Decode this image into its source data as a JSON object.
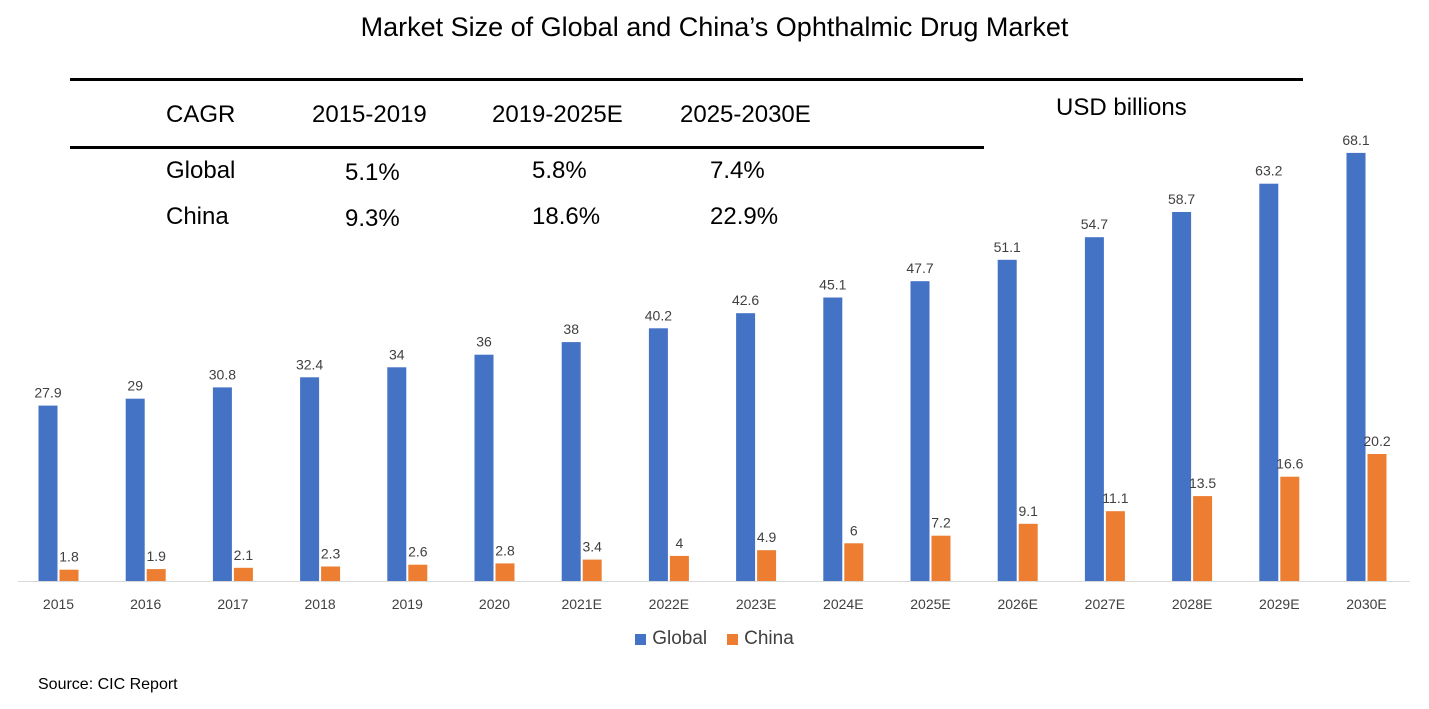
{
  "title": "Market Size of Global and China’s Ophthalmic Drug Market",
  "unit_label": "USD billions",
  "cagr_table": {
    "header": [
      "CAGR",
      "2015-2019",
      "2019-2025E",
      "2025-2030E"
    ],
    "rows": [
      {
        "label": "Global",
        "values": [
          "5.1%",
          "5.8%",
          "7.4%"
        ]
      },
      {
        "label": "China",
        "values": [
          "9.3%",
          "18.6%",
          "22.9%"
        ]
      }
    ]
  },
  "chart_data": {
    "type": "bar",
    "title": "Market Size of Global and China’s Ophthalmic Drug Market",
    "ylabel": "USD billions",
    "xlabel": "",
    "ylim": [
      0,
      70
    ],
    "categories": [
      "2015",
      "2016",
      "2017",
      "2018",
      "2019",
      "2020",
      "2021E",
      "2022E",
      "2023E",
      "2024E",
      "2025E",
      "2026E",
      "2027E",
      "2028E",
      "2029E",
      "2030E"
    ],
    "series": [
      {
        "name": "Global",
        "color": "#4472C4",
        "values": [
          27.9,
          29,
          30.8,
          32.4,
          34,
          36,
          38,
          40.2,
          42.6,
          45.1,
          47.7,
          51.1,
          54.7,
          58.7,
          63.2,
          68.1
        ]
      },
      {
        "name": "China",
        "color": "#ED7D31",
        "values": [
          1.8,
          1.9,
          2.1,
          2.3,
          2.6,
          2.8,
          3.4,
          4,
          4.9,
          6,
          7.2,
          9.1,
          11.1,
          13.5,
          16.6,
          20.2
        ]
      }
    ],
    "legend": [
      "Global",
      "China"
    ],
    "legend_position": "bottom"
  },
  "source": "Source: CIC Report"
}
